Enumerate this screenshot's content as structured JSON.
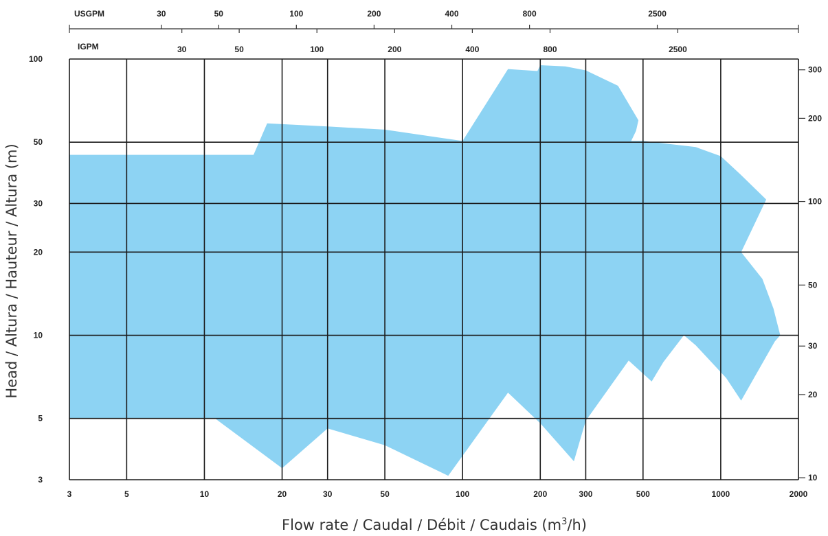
{
  "chart_data": {
    "type": "area",
    "xlabel": "Flow rate / Caudal / Débit / Caudais (m",
    "xlabel_sup": "3",
    "xlabel_tail": "/h)",
    "ylabel": "Head / Altura / Hauteur / Altura (m)",
    "x_scale": "log",
    "y_scale": "log",
    "xlim": [
      3,
      2000
    ],
    "ylim": [
      3,
      100
    ],
    "grid": true,
    "x_ticks": [
      3,
      5,
      10,
      20,
      30,
      50,
      100,
      200,
      300,
      500,
      1000,
      2000
    ],
    "y_ticks": [
      3,
      5,
      10,
      20,
      30,
      50,
      100
    ],
    "right_axis": {
      "ticks": [
        "300",
        "200",
        "100",
        "50",
        "30",
        "20",
        "10"
      ],
      "values_m": [
        91.4,
        61,
        30.5,
        15.2,
        9.14,
        6.1,
        3.05
      ]
    },
    "top_axes": [
      {
        "unit": "USGPM",
        "ticks": [
          "30",
          "50",
          "100",
          "200",
          "400",
          "800",
          "2500"
        ],
        "m3h": [
          6.81,
          11.36,
          22.71,
          45.42,
          90.85,
          181.7,
          567.8
        ]
      },
      {
        "unit": "IGPM",
        "ticks": [
          "30",
          "50",
          "100",
          "200",
          "400",
          "800",
          "2500"
        ],
        "m3h": [
          8.18,
          13.64,
          27.28,
          54.55,
          109.1,
          218.2,
          681.9
        ]
      }
    ],
    "series": [
      {
        "fill": "#8dd3f3",
        "x": [
          3,
          15.5,
          17.5,
          30,
          50,
          100,
          150,
          195,
          200,
          250,
          300,
          400,
          480,
          470,
          450,
          500,
          800,
          1000,
          1200,
          1500,
          1200,
          1450,
          1600,
          1700,
          1620,
          1200,
          1050,
          800,
          720,
          600,
          540,
          440,
          300,
          270,
          200,
          150,
          88,
          50,
          30,
          20,
          11,
          3
        ],
        "y": [
          45,
          45,
          58.5,
          57,
          55.5,
          50.5,
          92,
          90.5,
          95,
          94,
          91,
          80,
          60,
          55,
          50.5,
          50.5,
          48,
          44.5,
          38,
          31,
          20,
          16,
          12.5,
          10,
          9.5,
          5.8,
          7,
          9.2,
          10,
          8,
          6.8,
          8.1,
          4.9,
          3.5,
          4.8,
          6.2,
          3.1,
          4,
          4.6,
          3.3,
          5,
          5
        ]
      }
    ],
    "colors": {
      "fill": "#8dd3f3",
      "grid": "#1a1a1a"
    }
  }
}
